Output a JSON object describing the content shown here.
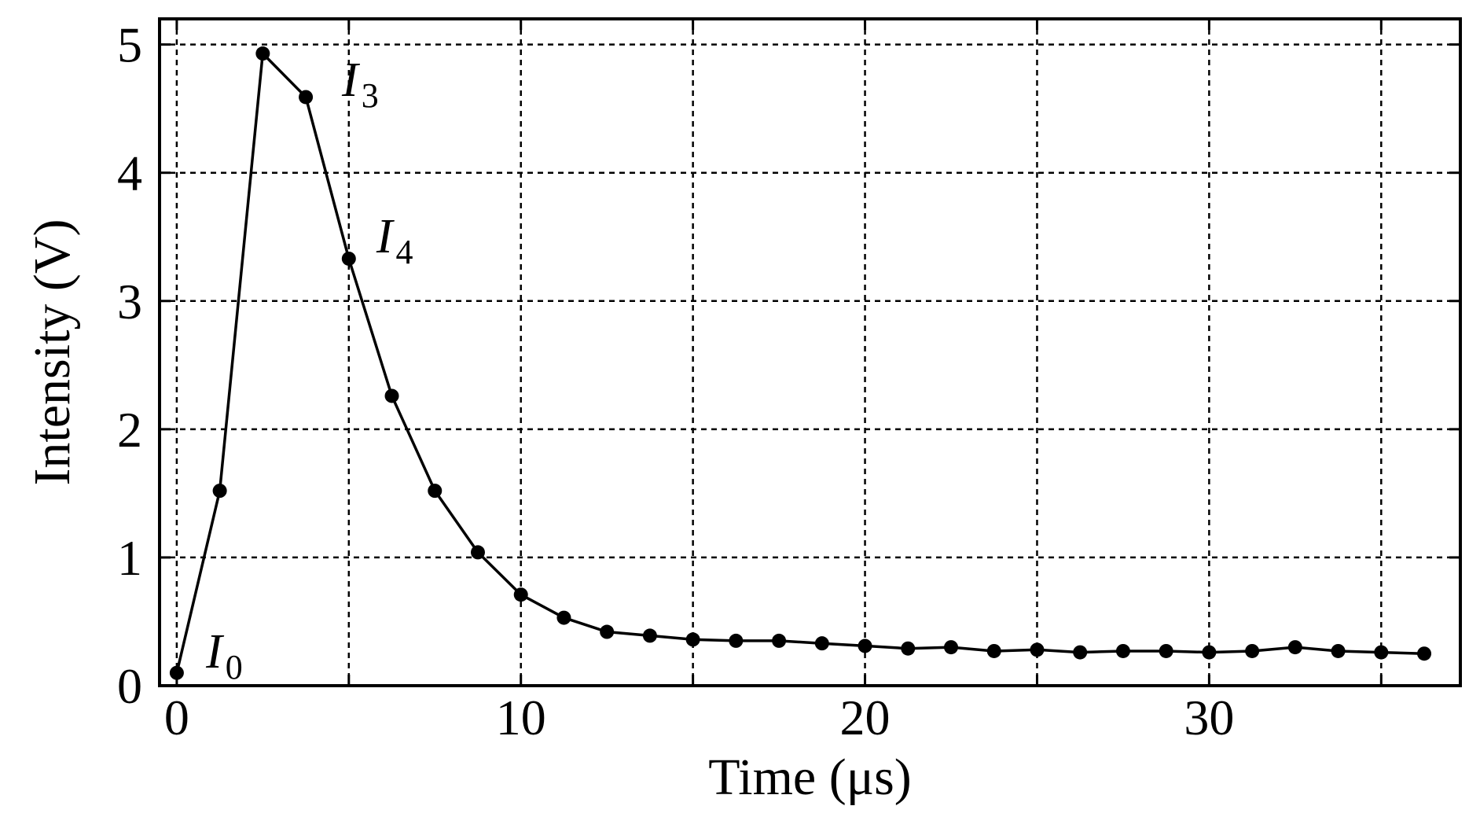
{
  "chart_data": {
    "type": "line",
    "xlabel": "Time (μs)",
    "ylabel": "Intensity (V)",
    "xlim": [
      -0.5,
      37.3
    ],
    "ylim": [
      0,
      5.2
    ],
    "xticks": [
      0,
      10,
      20,
      30
    ],
    "yticks": [
      0,
      1,
      2,
      3,
      4,
      5
    ],
    "x_gridlines": [
      0,
      5,
      10,
      15,
      20,
      25,
      30,
      35
    ],
    "y_gridlines": [
      1,
      2,
      3,
      4,
      5
    ],
    "grid": true,
    "series": [
      {
        "x": [
          0,
          1.25,
          2.5,
          3.75,
          5,
          6.25,
          7.5,
          8.75,
          10,
          11.25,
          12.5,
          13.75,
          15,
          16.25,
          17.5,
          18.75,
          20,
          21.25,
          22.5,
          23.75,
          25,
          26.25,
          27.5,
          28.75,
          30,
          31.25,
          32.5,
          33.75,
          35,
          36.25
        ],
        "y": [
          0.1,
          1.52,
          4.93,
          4.59,
          3.33,
          2.26,
          1.52,
          1.04,
          0.71,
          0.53,
          0.42,
          0.39,
          0.36,
          0.35,
          0.35,
          0.33,
          0.31,
          0.29,
          0.3,
          0.27,
          0.28,
          0.26,
          0.27,
          0.27,
          0.26,
          0.27,
          0.3,
          0.27,
          0.26,
          0.25
        ]
      }
    ],
    "annotations": [
      {
        "main": "I",
        "sub": "0",
        "x": 0.85,
        "y": 0.14
      },
      {
        "main": "I",
        "sub": "3",
        "x": 4.8,
        "y": 4.6
      },
      {
        "main": "I",
        "sub": "4",
        "x": 5.8,
        "y": 3.38
      }
    ]
  }
}
